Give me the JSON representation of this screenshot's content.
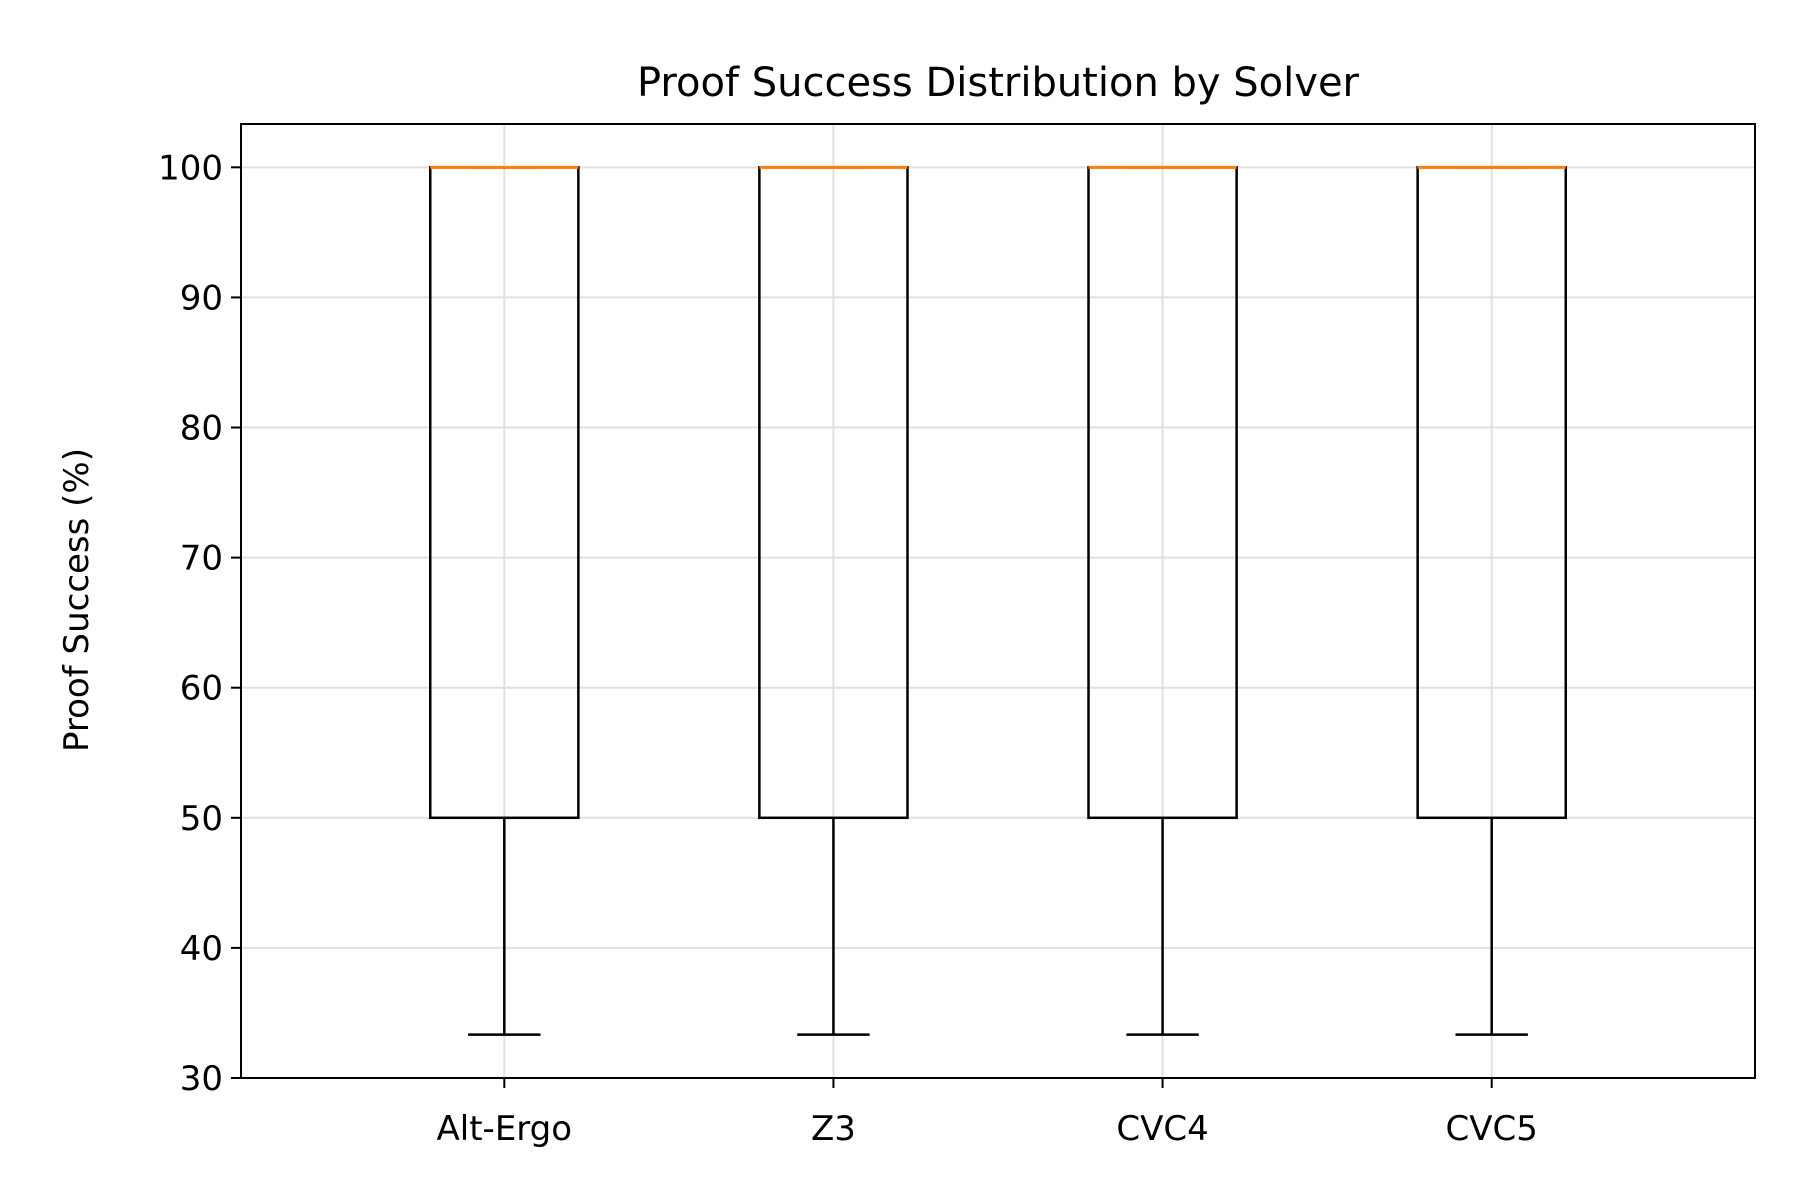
{
  "chart_data": {
    "type": "box",
    "title": "Proof Success Distribution by Solver",
    "xlabel": "",
    "ylabel": "Proof Success (%)",
    "ylim": [
      30,
      103.33
    ],
    "yticks": [
      30,
      40,
      50,
      60,
      70,
      80,
      90,
      100
    ],
    "grid": true,
    "categories": [
      "Alt-Ergo",
      "Z3",
      "CVC4",
      "CVC5"
    ],
    "boxes": [
      {
        "label": "Alt-Ergo",
        "whisker_low": 33.33,
        "q1": 50,
        "median": 100,
        "q3": 100,
        "whisker_high": 100
      },
      {
        "label": "Z3",
        "whisker_low": 33.33,
        "q1": 50,
        "median": 100,
        "q3": 100,
        "whisker_high": 100
      },
      {
        "label": "CVC4",
        "whisker_low": 33.33,
        "q1": 50,
        "median": 100,
        "q3": 100,
        "whisker_high": 100
      },
      {
        "label": "CVC5",
        "whisker_low": 33.33,
        "q1": 50,
        "median": 100,
        "q3": 100,
        "whisker_high": 100
      }
    ],
    "colors": {
      "box": "#000000",
      "median": "#ff7f0e",
      "grid": "#e0e0e0",
      "axes": "#000000"
    }
  }
}
